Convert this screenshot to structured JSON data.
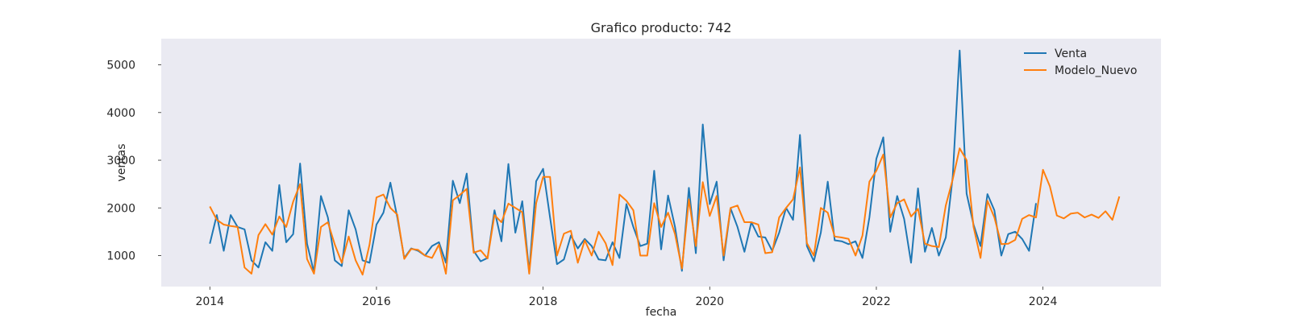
{
  "chart_data": {
    "type": "line",
    "title": "Grafico producto: 742",
    "xlabel": "fecha",
    "ylabel": "ventas",
    "x_start": "2014-01",
    "x_ticks": [
      "2014",
      "2016",
      "2018",
      "2020",
      "2022",
      "2024"
    ],
    "y_ticks": [
      1000,
      2000,
      3000,
      4000,
      5000
    ],
    "xlim": [
      "2013-06",
      "2025-06"
    ],
    "ylim": [
      350,
      5550
    ],
    "grid": false,
    "legend_position": "top-right",
    "series": [
      {
        "name": "Venta",
        "color": "#1f77b4",
        "values": [
          1250,
          1850,
          1100,
          1850,
          1600,
          1550,
          900,
          750,
          1280,
          1100,
          2480,
          1280,
          1450,
          2930,
          1250,
          650,
          2250,
          1800,
          900,
          780,
          1950,
          1550,
          900,
          850,
          1650,
          1900,
          2530,
          1800,
          950,
          1150,
          1100,
          1000,
          1200,
          1280,
          850,
          2570,
          2100,
          2720,
          1100,
          880,
          950,
          1950,
          1300,
          2920,
          1480,
          2140,
          650,
          2560,
          2820,
          1800,
          820,
          920,
          1420,
          1150,
          1350,
          1200,
          920,
          900,
          1280,
          950,
          2080,
          1600,
          1200,
          1250,
          2780,
          1130,
          2260,
          1600,
          680,
          2420,
          1050,
          3750,
          2080,
          2550,
          900,
          1990,
          1600,
          1080,
          1700,
          1400,
          1380,
          1100,
          1480,
          2000,
          1750,
          3530,
          1200,
          880,
          1480,
          2550,
          1320,
          1300,
          1240,
          1300,
          950,
          1800,
          3030,
          3480,
          1500,
          2250,
          1770,
          850,
          2410,
          1080,
          1580,
          1000,
          1380,
          2650,
          5300,
          2300,
          1650,
          1200,
          2290,
          1950,
          1000,
          1450,
          1500,
          1350,
          1100,
          2100
        ],
        "values_note": ""
      },
      {
        "name": "Modelo_Nuevo",
        "color": "#ff7f0e",
        "values": [
          2030,
          1750,
          1650,
          1620,
          1600,
          750,
          620,
          1430,
          1660,
          1440,
          1820,
          1600,
          2130,
          2500,
          930,
          620,
          1600,
          1700,
          1230,
          850,
          1400,
          900,
          600,
          1230,
          2220,
          2280,
          2000,
          1860,
          930,
          1140,
          1120,
          1000,
          950,
          1230,
          620,
          2160,
          2270,
          2400,
          1060,
          1110,
          940,
          1850,
          1700,
          2090,
          2000,
          1910,
          620,
          2100,
          2650,
          2650,
          1000,
          1460,
          1520,
          850,
          1320,
          1000,
          1500,
          1260,
          800,
          2280,
          2150,
          1950,
          1000,
          1000,
          2100,
          1600,
          1900,
          1450,
          730,
          2180,
          1200,
          2540,
          1830,
          2250,
          1000,
          2000,
          2050,
          1700,
          1700,
          1650,
          1050,
          1070,
          1800,
          2000,
          2180,
          2850,
          1260,
          1000,
          2000,
          1900,
          1400,
          1380,
          1350,
          1000,
          1420,
          2550,
          2780,
          3120,
          1800,
          2100,
          2180,
          1820,
          1980,
          1250,
          1200,
          1180,
          2050,
          2600,
          3250,
          3000,
          1600,
          950,
          2150,
          1800,
          1240,
          1250,
          1330,
          1770,
          1850,
          1800,
          2800,
          2450,
          1840,
          1780,
          1880,
          1900,
          1800,
          1860,
          1790,
          1930,
          1750,
          2240
        ]
      }
    ]
  }
}
